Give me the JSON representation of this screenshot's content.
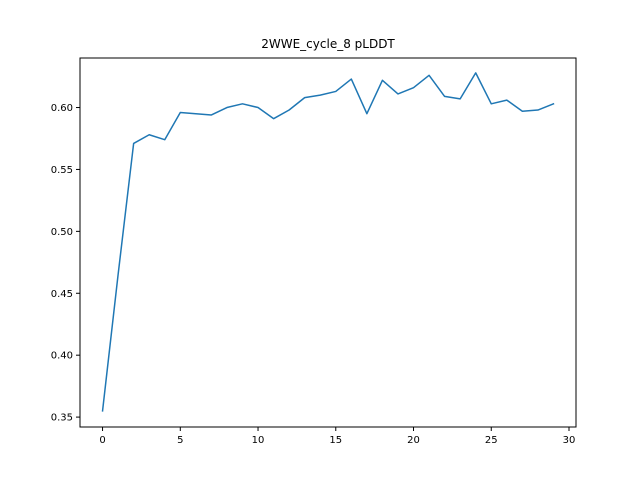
{
  "chart_data": {
    "type": "line",
    "title": "2WWE_cycle_8 pLDDT",
    "xlabel": "",
    "ylabel": "",
    "xlim": [
      -1.45,
      30.45
    ],
    "ylim": [
      0.342,
      0.64
    ],
    "x_ticks": [
      0,
      5,
      10,
      15,
      20,
      25,
      30
    ],
    "y_ticks": [
      0.35,
      0.4,
      0.45,
      0.5,
      0.55,
      0.6
    ],
    "x_tick_labels": [
      "0",
      "5",
      "10",
      "15",
      "20",
      "25",
      "30"
    ],
    "y_tick_labels": [
      "0.35",
      "0.40",
      "0.45",
      "0.50",
      "0.55",
      "0.60"
    ],
    "grid": false,
    "legend": "none",
    "line_color": "#1f77b4",
    "series": [
      {
        "x": [
          0,
          1,
          2,
          3,
          4,
          5,
          6,
          7,
          8,
          9,
          10,
          11,
          12,
          13,
          14,
          15,
          16,
          17,
          18,
          19,
          20,
          21,
          22,
          23,
          24,
          25,
          26,
          27,
          28,
          29
        ],
        "values": [
          0.355,
          0.465,
          0.571,
          0.578,
          0.574,
          0.596,
          0.595,
          0.594,
          0.6,
          0.603,
          0.6,
          0.591,
          0.598,
          0.608,
          0.61,
          0.613,
          0.623,
          0.595,
          0.622,
          0.611,
          0.616,
          0.626,
          0.609,
          0.607,
          0.628,
          0.603,
          0.606,
          0.597,
          0.598,
          0.603
        ]
      }
    ]
  }
}
